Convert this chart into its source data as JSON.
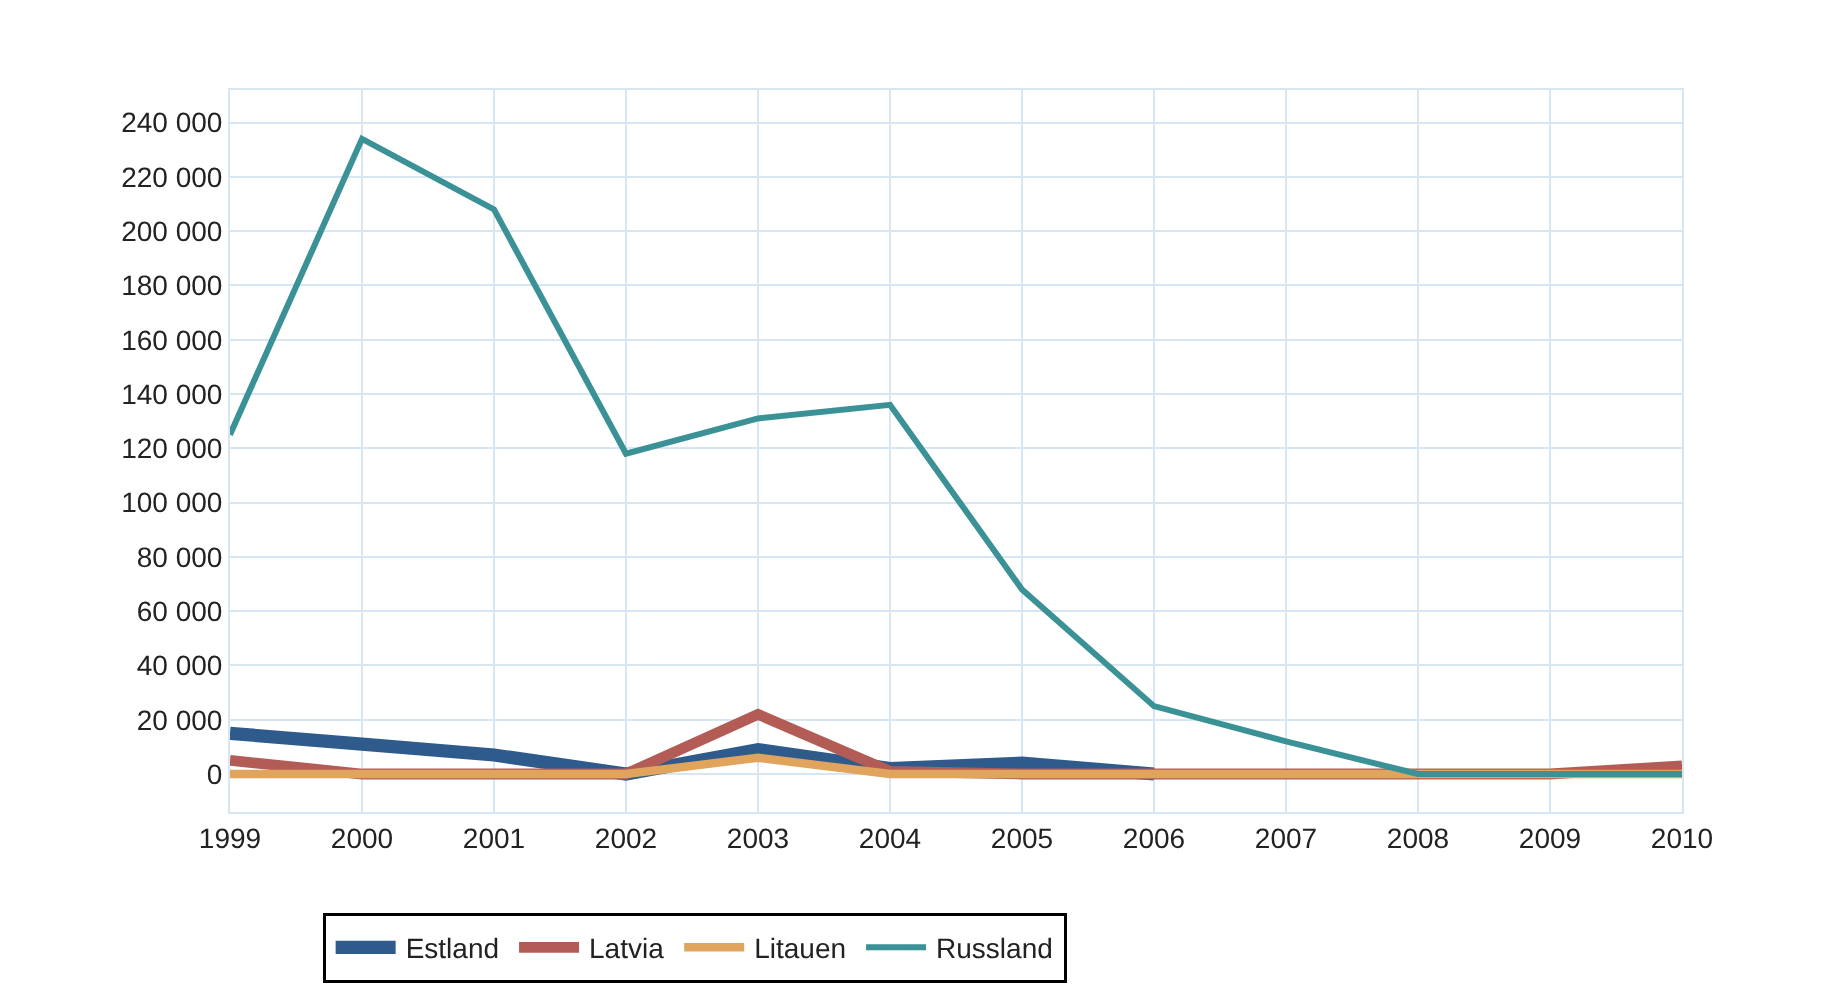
{
  "chart_data": {
    "type": "line",
    "categories": [
      "1999",
      "2000",
      "2001",
      "2002",
      "2003",
      "2004",
      "2005",
      "2006",
      "2007",
      "2008",
      "2009",
      "2010"
    ],
    "series": [
      {
        "name": "Estland",
        "color": "#2e5b8c",
        "values": [
          15000,
          11000,
          7000,
          0,
          9000,
          2000,
          4000,
          0,
          null,
          null,
          null,
          null
        ]
      },
      {
        "name": "Latvia",
        "color": "#b35c55",
        "values": [
          5000,
          0,
          0,
          0,
          22000,
          1000,
          0,
          0,
          0,
          0,
          0,
          3000
        ]
      },
      {
        "name": "Litauen",
        "color": "#e0a45c",
        "values": [
          0,
          0,
          0,
          0,
          6000,
          0,
          0,
          0,
          0,
          0,
          0,
          0
        ]
      },
      {
        "name": "Russland",
        "color": "#3a9196",
        "values": [
          125000,
          234000,
          208000,
          118000,
          131000,
          136000,
          68000,
          25000,
          12000,
          0,
          0,
          0
        ]
      }
    ],
    "ylim": [
      -14000,
      252000
    ],
    "yticks": [
      {
        "value": 0,
        "label": "0"
      },
      {
        "value": 20000,
        "label": "20 000"
      },
      {
        "value": 40000,
        "label": "40 000"
      },
      {
        "value": 60000,
        "label": "60 000"
      },
      {
        "value": 80000,
        "label": "80 000"
      },
      {
        "value": 100000,
        "label": "100 000"
      },
      {
        "value": 120000,
        "label": "120 000"
      },
      {
        "value": 140000,
        "label": "140 000"
      },
      {
        "value": 160000,
        "label": "160 000"
      },
      {
        "value": 180000,
        "label": "180 000"
      },
      {
        "value": 200000,
        "label": "200 000"
      },
      {
        "value": 220000,
        "label": "220 000"
      },
      {
        "value": 240000,
        "label": "240 000"
      }
    ],
    "grid": true,
    "legend": "bottom",
    "marker": "none",
    "line_style": "solid"
  }
}
